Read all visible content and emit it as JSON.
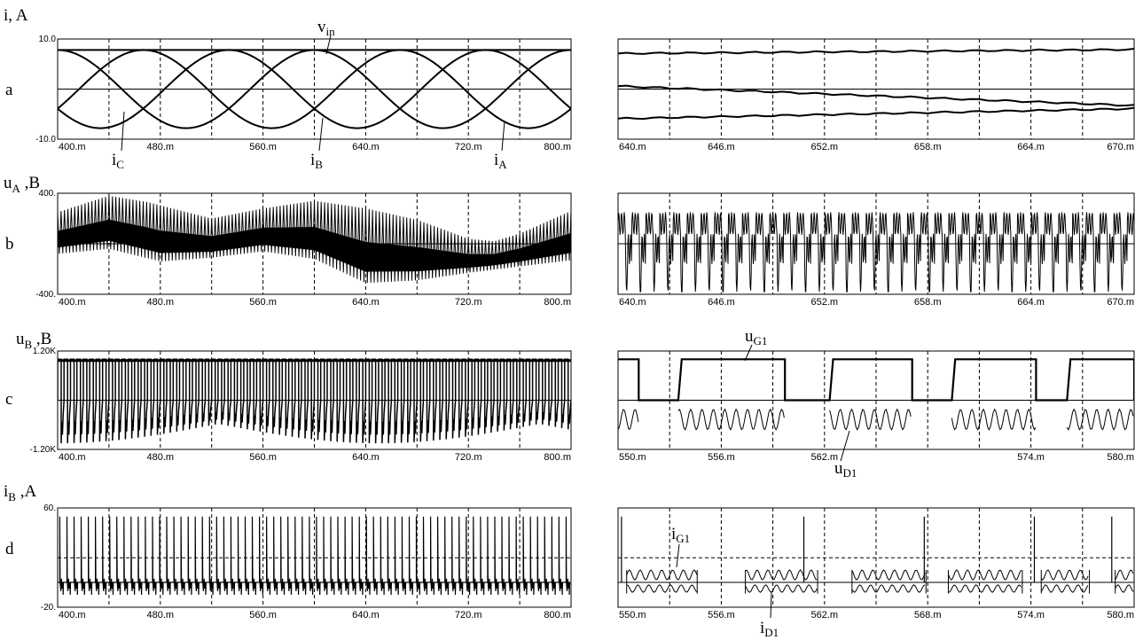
{
  "rows": [
    {
      "letter": "a",
      "y_label": "i, A",
      "y_label_main": "i, A",
      "y_label_sub": ""
    },
    {
      "letter": "b",
      "y_label": "uA ,B",
      "y_label_main": "u",
      "y_label_sub": "A",
      "y_label_tail": " ,B"
    },
    {
      "letter": "c",
      "y_label": "uB ,B",
      "y_label_main": "u",
      "y_label_sub": "B",
      "y_label_tail": " ,B"
    },
    {
      "letter": "d",
      "y_label": "iB ,A",
      "y_label_main": "i",
      "y_label_sub": "B",
      "y_label_tail": " ,A"
    }
  ],
  "annotations": {
    "v_in": {
      "main": "v",
      "sub": "in"
    },
    "i_C": {
      "main": "i",
      "sub": "C"
    },
    "i_B": {
      "main": "i",
      "sub": "B"
    },
    "i_A": {
      "main": "i",
      "sub": "A"
    },
    "u_G1": {
      "main": "u",
      "sub": "G1"
    },
    "u_D1": {
      "main": "u",
      "sub": "D1"
    },
    "i_G1": {
      "main": "i",
      "sub": "G1"
    },
    "i_D1": {
      "main": "i",
      "sub": "D1"
    }
  },
  "chart_data": [
    {
      "id": "a-left",
      "type": "line",
      "row": "a",
      "xlim": [
        400,
        800
      ],
      "ylim": [
        -10,
        10
      ],
      "x_ticks": [
        "400.m",
        "480.m",
        "560.m",
        "640.m",
        "720.m",
        "800.m"
      ],
      "y_ticks": [
        "10.0",
        "-10.0"
      ],
      "series": [
        {
          "name": "vin",
          "kind": "const",
          "value": 7.8
        },
        {
          "name": "iA",
          "kind": "sine",
          "amp": 7.8,
          "period_ms": 200,
          "peak_at_ms": 400
        },
        {
          "name": "iB",
          "kind": "sine",
          "amp": 7.8,
          "period_ms": 200,
          "peak_at_ms": 466.7
        },
        {
          "name": "iC",
          "kind": "sine",
          "amp": 7.8,
          "period_ms": 200,
          "peak_at_ms": 533.3
        }
      ]
    },
    {
      "id": "a-right",
      "type": "line",
      "row": "a",
      "xlim": [
        640,
        670
      ],
      "ylim": [
        -10,
        10
      ],
      "x_ticks": [
        "640.m",
        "646.m",
        "652.m",
        "658.m",
        "664.m",
        "670.m"
      ],
      "series": [
        {
          "name": "top",
          "start": 7.1,
          "end": 7.9
        },
        {
          "name": "middle",
          "start": 0.6,
          "end": -3.3
        },
        {
          "name": "bottom",
          "start": -5.9,
          "end": -3.9
        }
      ]
    },
    {
      "id": "b-left",
      "type": "line",
      "row": "b",
      "xlim": [
        400,
        800
      ],
      "ylim": [
        -400,
        400
      ],
      "x_ticks": [
        "400.m",
        "480.m",
        "560.m",
        "640.m",
        "720.m",
        "800.m"
      ],
      "y_ticks": [
        "400.",
        "-400."
      ],
      "envelope_upper": [
        [
          400,
          250
        ],
        [
          440,
          380
        ],
        [
          470,
          330
        ],
        [
          520,
          200
        ],
        [
          560,
          280
        ],
        [
          600,
          340
        ],
        [
          640,
          280
        ],
        [
          680,
          190
        ],
        [
          720,
          40
        ],
        [
          740,
          20
        ],
        [
          760,
          80
        ],
        [
          800,
          260
        ]
      ],
      "envelope_lower": [
        [
          400,
          -80
        ],
        [
          440,
          -40
        ],
        [
          480,
          -140
        ],
        [
          520,
          -110
        ],
        [
          560,
          -60
        ],
        [
          600,
          -120
        ],
        [
          640,
          -310
        ],
        [
          680,
          -290
        ],
        [
          720,
          -230
        ],
        [
          760,
          -180
        ],
        [
          800,
          -130
        ]
      ]
    },
    {
      "id": "b-right",
      "type": "line",
      "row": "b",
      "xlim": [
        640,
        670
      ],
      "ylim": [
        -400,
        400
      ],
      "x_ticks": [
        "640.m",
        "646.m",
        "652.m",
        "658.m",
        "664.m",
        "670.m"
      ],
      "switching_period_ms": 0.8,
      "peak": 250,
      "dip": -380
    },
    {
      "id": "c-left",
      "type": "line",
      "row": "c",
      "xlim": [
        400,
        800
      ],
      "ylim": [
        -1200,
        1200
      ],
      "x_ticks": [
        "400.m",
        "480.m",
        "560.m",
        "640.m",
        "720.m",
        "800.m"
      ],
      "y_ticks": [
        "1.20K",
        "-1.20K"
      ],
      "high_level": 1000,
      "low_level": 0,
      "dip_min": -1050,
      "pulses": 80
    },
    {
      "id": "c-right",
      "type": "line",
      "row": "c",
      "xlim": [
        550,
        580
      ],
      "ylim": [
        -1200,
        1200
      ],
      "x_ticks": [
        "550.m",
        "556.m",
        "562.m",
        "574.m",
        "580.m"
      ],
      "x_tick_values": [
        550,
        556,
        562,
        574,
        580
      ],
      "series": [
        {
          "name": "uG1",
          "high": 1000,
          "low": 0,
          "pulses_ms": [
            [
              549.5,
              551.2
            ],
            [
              553.5,
              559.7
            ],
            [
              562.3,
              567.1
            ],
            [
              569.4,
              574.3
            ],
            [
              576.1,
              580
            ]
          ]
        },
        {
          "name": "uD1",
          "ripple_min": -720,
          "ripple_max": -220
        }
      ]
    },
    {
      "id": "d-left",
      "type": "line",
      "row": "d",
      "xlim": [
        400,
        800
      ],
      "ylim": [
        -20,
        60
      ],
      "x_ticks": [
        "400.m",
        "480.m",
        "560.m",
        "640.m",
        "720.m",
        "800.m"
      ],
      "y_ticks": [
        "60.",
        "-20."
      ],
      "spike_max": 53,
      "spike_min": -10,
      "pulses": 72
    },
    {
      "id": "d-right",
      "type": "line",
      "row": "d",
      "xlim": [
        550,
        580
      ],
      "ylim": [
        -20,
        60
      ],
      "x_ticks": [
        "550.m",
        "556.m",
        "562.m",
        "568.m",
        "574.m",
        "580.m"
      ],
      "series": [
        {
          "name": "iG1",
          "spikes_ms": [
            550.2,
            560.8,
            567.8,
            574.2,
            578.7
          ],
          "spike_max": 53
        },
        {
          "name": "iD1",
          "blocks_ms": [
            [
              550.5,
              554.6
            ],
            [
              557.4,
              561.6
            ],
            [
              563.6,
              567.9
            ],
            [
              569.2,
              573.5
            ],
            [
              574.6,
              577.4
            ],
            [
              578.9,
              580
            ]
          ]
        }
      ]
    }
  ]
}
